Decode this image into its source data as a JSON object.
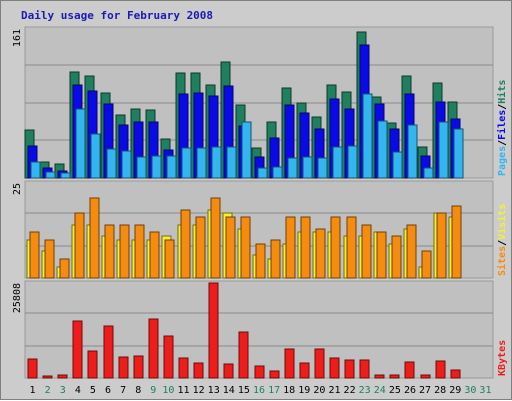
{
  "chart_data": {
    "type": "bar",
    "title": "Daily usage for February 2008",
    "days": [
      {
        "label": "1",
        "weekend": false
      },
      {
        "label": "2",
        "weekend": true
      },
      {
        "label": "3",
        "weekend": true
      },
      {
        "label": "4",
        "weekend": false
      },
      {
        "label": "5",
        "weekend": false
      },
      {
        "label": "6",
        "weekend": false
      },
      {
        "label": "7",
        "weekend": false
      },
      {
        "label": "8",
        "weekend": false
      },
      {
        "label": "9",
        "weekend": true
      },
      {
        "label": "10",
        "weekend": true
      },
      {
        "label": "11",
        "weekend": false
      },
      {
        "label": "12",
        "weekend": false
      },
      {
        "label": "13",
        "weekend": false
      },
      {
        "label": "14",
        "weekend": false
      },
      {
        "label": "15",
        "weekend": false
      },
      {
        "label": "16",
        "weekend": true
      },
      {
        "label": "17",
        "weekend": true
      },
      {
        "label": "18",
        "weekend": false
      },
      {
        "label": "19",
        "weekend": false
      },
      {
        "label": "20",
        "weekend": false
      },
      {
        "label": "21",
        "weekend": false
      },
      {
        "label": "22",
        "weekend": false
      },
      {
        "label": "23",
        "weekend": true
      },
      {
        "label": "24",
        "weekend": true
      },
      {
        "label": "25",
        "weekend": false
      },
      {
        "label": "26",
        "weekend": false
      },
      {
        "label": "27",
        "weekend": false
      },
      {
        "label": "28",
        "weekend": false
      },
      {
        "label": "29",
        "weekend": false
      },
      {
        "label": "30",
        "weekend": true
      },
      {
        "label": "31",
        "weekend": true
      }
    ],
    "panels": [
      {
        "id": "pages-files-hits",
        "max_label": "161",
        "ylim": [
          0,
          161
        ],
        "legend": [
          "Pages",
          "Files",
          "Hits"
        ],
        "series": [
          {
            "name": "Hits",
            "color": "#1f7f5f",
            "values": [
              52,
              17,
              15,
              115,
              110,
              92,
              68,
              75,
              74,
              42,
              113,
              113,
              101,
              125,
              79,
              32,
              60,
              97,
              81,
              66,
              101,
              93,
              158,
              87,
              59,
              110,
              33,
              103,
              82,
              null,
              null
            ]
          },
          {
            "name": "Files",
            "color": "#0a0ae6",
            "values": [
              35,
              11,
              8,
              100,
              94,
              80,
              57,
              60,
              60,
              30,
              91,
              92,
              89,
              99,
              56,
              23,
              43,
              79,
              70,
              53,
              85,
              75,
              144,
              80,
              53,
              91,
              24,
              82,
              64,
              null,
              null
            ]
          },
          {
            "name": "Pages",
            "color": "#33b5f0",
            "values": [
              17,
              6,
              5,
              75,
              48,
              31,
              29,
              23,
              24,
              24,
              32,
              32,
              33,
              33,
              61,
              11,
              12,
              22,
              23,
              22,
              34,
              35,
              91,
              62,
              28,
              57,
              11,
              60,
              53,
              null,
              null
            ]
          }
        ]
      },
      {
        "id": "visits-sites",
        "max_label": "25",
        "ylim": [
          0,
          25
        ],
        "legend": [
          "Sites",
          "Visits"
        ],
        "series": [
          {
            "name": "Visits",
            "color": "#f5f032",
            "values": [
              10,
              7,
              3,
              14,
              14,
              11,
              10,
              10,
              10,
              11,
              14,
              14,
              18,
              17,
              13,
              6,
              5,
              9,
              12,
              12,
              12,
              11,
              11,
              12,
              9,
              13,
              3,
              17,
              16,
              null,
              null
            ]
          },
          {
            "name": "Sites",
            "color": "#f68c0f",
            "values": [
              12,
              10,
              5,
              17,
              21,
              14,
              14,
              14,
              12,
              10,
              18,
              16,
              21,
              16,
              16,
              9,
              10,
              16,
              16,
              13,
              16,
              16,
              14,
              12,
              11,
              14,
              7,
              17,
              19,
              null,
              null
            ]
          }
        ]
      },
      {
        "id": "kbytes",
        "max_label": "25808",
        "ylim": [
          0,
          25808
        ],
        "legend": [
          "KBytes"
        ],
        "series": [
          {
            "name": "KBytes",
            "color": "#ef1c1c",
            "values": [
              5100,
              650,
              900,
              15600,
              7400,
              14000,
              5700,
              5900,
              16000,
              11300,
              5400,
              4100,
              25808,
              3900,
              12400,
              3300,
              2000,
              7900,
              4100,
              7900,
              5400,
              4900,
              4900,
              800,
              800,
              4300,
              800,
              4600,
              2200,
              null,
              null
            ]
          }
        ]
      }
    ]
  }
}
